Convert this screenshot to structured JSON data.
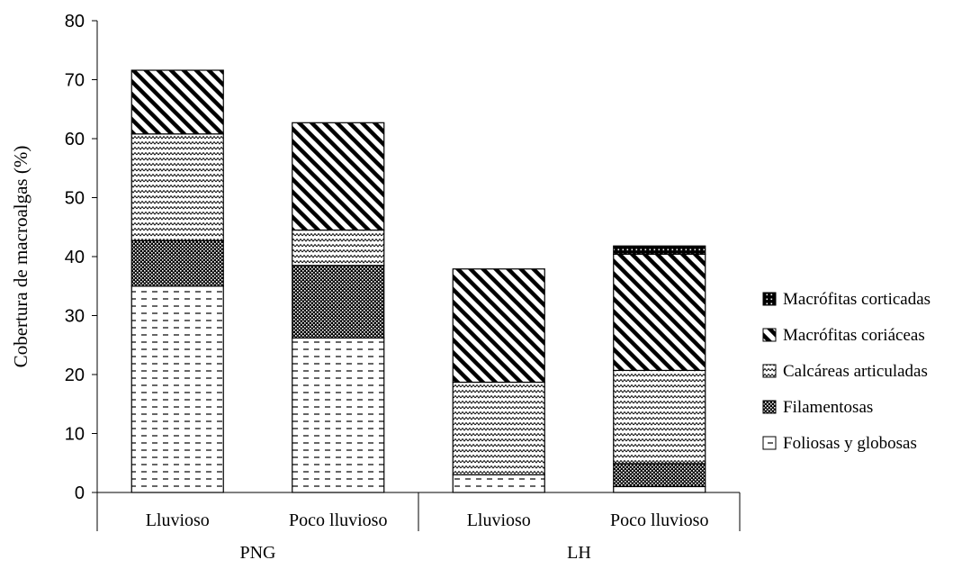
{
  "chart_data": {
    "type": "bar",
    "stacked": true,
    "title": "",
    "xlabel": "",
    "ylabel": "Cobertura de macroalgas (%)",
    "ylim": [
      0,
      80
    ],
    "yticks": [
      0,
      10,
      20,
      30,
      40,
      50,
      60,
      70,
      80
    ],
    "grid": false,
    "legend_position": "right",
    "groups": [
      {
        "label": "PNG",
        "categories": [
          "Lluvioso",
          "Poco lluvioso"
        ]
      },
      {
        "label": "LH",
        "categories": [
          "Lluvioso",
          "Poco lluvioso"
        ]
      }
    ],
    "categories": [
      "Lluvioso",
      "Poco lluvioso",
      "Lluvioso",
      "Poco lluvioso"
    ],
    "series": [
      {
        "name": "Foliosas y globosas",
        "pattern": "dashes",
        "values": [
          35.0,
          26.2,
          3.0,
          1.0
        ]
      },
      {
        "name": "Filamentosas",
        "pattern": "checker",
        "values": [
          7.7,
          12.3,
          0.0,
          3.9
        ]
      },
      {
        "name": "Calcáreas articuladas",
        "pattern": "zigzag",
        "values": [
          18.1,
          6.0,
          15.7,
          15.8
        ]
      },
      {
        "name": "Macrófitas coriáceas",
        "pattern": "diagonal",
        "values": [
          10.8,
          18.2,
          19.2,
          19.7
        ]
      },
      {
        "name": "Macrófitas corticadas",
        "pattern": "dots",
        "values": [
          0.0,
          0.0,
          0.0,
          1.4
        ]
      }
    ]
  }
}
